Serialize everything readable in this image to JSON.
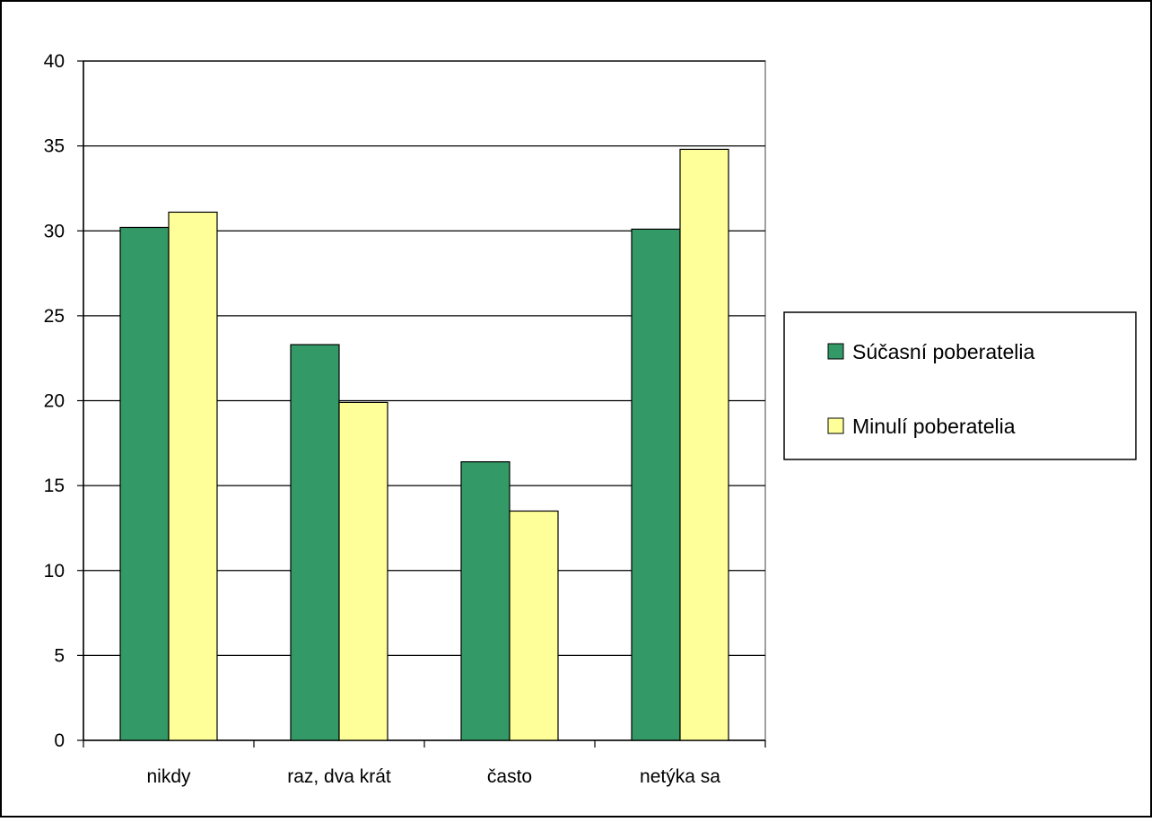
{
  "chart_data": {
    "type": "bar",
    "title": "",
    "xlabel": "",
    "ylabel": "",
    "categories": [
      "nikdy",
      "raz, dva krát",
      "často",
      "netýka sa"
    ],
    "series": [
      {
        "name": "Súčasní poberatelia",
        "values": [
          30.2,
          23.3,
          16.4,
          30.1
        ],
        "color": "#339966"
      },
      {
        "name": "Minulí poberatelia",
        "values": [
          31.1,
          19.9,
          13.5,
          34.8
        ],
        "color": "#FFFF99"
      }
    ],
    "ylim": [
      0,
      40
    ],
    "yticks": [
      "0",
      "5",
      "10",
      "15",
      "20",
      "25",
      "30",
      "35",
      "40"
    ],
    "grid": true,
    "legend_position": "right"
  }
}
